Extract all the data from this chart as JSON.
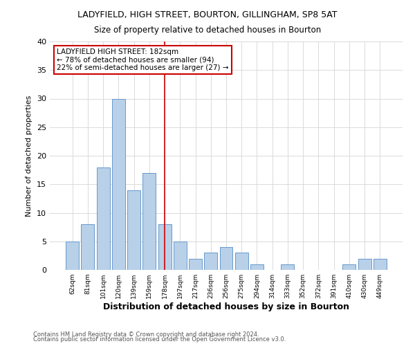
{
  "title": "LADYFIELD, HIGH STREET, BOURTON, GILLINGHAM, SP8 5AT",
  "subtitle": "Size of property relative to detached houses in Bourton",
  "xlabel": "Distribution of detached houses by size in Bourton",
  "ylabel": "Number of detached properties",
  "bar_labels": [
    "62sqm",
    "81sqm",
    "101sqm",
    "120sqm",
    "139sqm",
    "159sqm",
    "178sqm",
    "197sqm",
    "217sqm",
    "236sqm",
    "256sqm",
    "275sqm",
    "294sqm",
    "314sqm",
    "333sqm",
    "352sqm",
    "372sqm",
    "391sqm",
    "410sqm",
    "430sqm",
    "449sqm"
  ],
  "bar_values": [
    5,
    8,
    18,
    30,
    14,
    17,
    8,
    5,
    2,
    3,
    4,
    3,
    1,
    0,
    1,
    0,
    0,
    0,
    1,
    2,
    2
  ],
  "bar_color": "#b8d0e8",
  "bar_edge_color": "#6699cc",
  "highlight_index": 6,
  "highlight_line_color": "#cc0000",
  "annotation_title": "LADYFIELD HIGH STREET: 182sqm",
  "annotation_line1": "← 78% of detached houses are smaller (94)",
  "annotation_line2": "22% of semi-detached houses are larger (27) →",
  "annotation_box_edge": "#cc0000",
  "ylim": [
    0,
    40
  ],
  "yticks": [
    0,
    5,
    10,
    15,
    20,
    25,
    30,
    35,
    40
  ],
  "footer1": "Contains HM Land Registry data © Crown copyright and database right 2024.",
  "footer2": "Contains public sector information licensed under the Open Government Licence v3.0."
}
